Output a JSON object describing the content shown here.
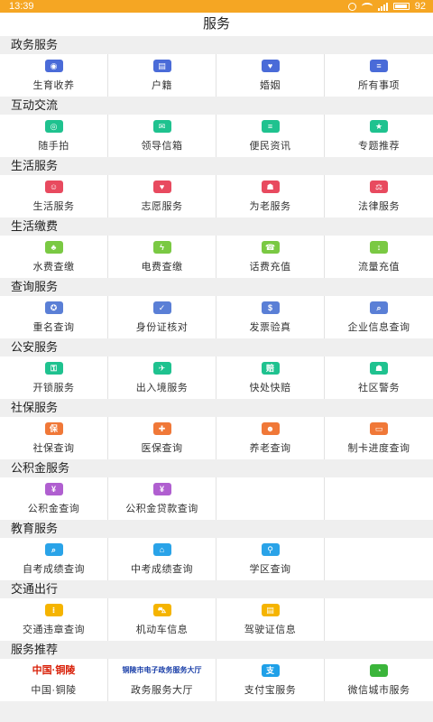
{
  "statusbar": {
    "time": "13:39",
    "battery": "92"
  },
  "header": {
    "title": "服务"
  },
  "sections": [
    {
      "title": "政务服务",
      "items": [
        {
          "label": "生育收养",
          "icon": "family-icon",
          "glyph": "◉",
          "color": "#4a6bd8"
        },
        {
          "label": "户籍",
          "icon": "id-card-icon",
          "glyph": "▤",
          "color": "#4a6bd8"
        },
        {
          "label": "婚姻",
          "icon": "couple-icon",
          "glyph": "♥",
          "color": "#4a6bd8"
        },
        {
          "label": "所有事项",
          "icon": "document-icon",
          "glyph": "≡",
          "color": "#4a6bd8"
        }
      ]
    },
    {
      "title": "互动交流",
      "items": [
        {
          "label": "随手拍",
          "icon": "camera-icon",
          "glyph": "◎",
          "color": "#1fc28f"
        },
        {
          "label": "领导信箱",
          "icon": "mail-icon",
          "glyph": "✉",
          "color": "#1fc28f"
        },
        {
          "label": "便民资讯",
          "icon": "news-icon",
          "glyph": "≡",
          "color": "#1fc28f"
        },
        {
          "label": "专题推荐",
          "icon": "star-icon",
          "glyph": "★",
          "color": "#1fc28f"
        }
      ]
    },
    {
      "title": "生活服务",
      "items": [
        {
          "label": "生活服务",
          "icon": "person-icon",
          "glyph": "☺",
          "color": "#e84a5f"
        },
        {
          "label": "志愿服务",
          "icon": "heart-hand-icon",
          "glyph": "♥",
          "color": "#e84a5f"
        },
        {
          "label": "为老服务",
          "icon": "elderly-icon",
          "glyph": "☗",
          "color": "#e84a5f"
        },
        {
          "label": "法律服务",
          "icon": "gavel-icon",
          "glyph": "⚖",
          "color": "#e84a5f"
        }
      ]
    },
    {
      "title": "生活缴费",
      "items": [
        {
          "label": "水费查缴",
          "icon": "water-drop-icon",
          "glyph": "♣",
          "color": "#7ac943"
        },
        {
          "label": "电费查缴",
          "icon": "lightning-icon",
          "glyph": "ϟ",
          "color": "#7ac943"
        },
        {
          "label": "话费充值",
          "icon": "phone-icon",
          "glyph": "☎",
          "color": "#7ac943"
        },
        {
          "label": "流量充值",
          "icon": "data-icon",
          "glyph": "↕",
          "color": "#7ac943"
        }
      ]
    },
    {
      "title": "查询服务",
      "items": [
        {
          "label": "重名查询",
          "icon": "search-person-icon",
          "glyph": "✪",
          "color": "#5a7fd6"
        },
        {
          "label": "身份证核对",
          "icon": "id-check-icon",
          "glyph": "✓",
          "color": "#5a7fd6"
        },
        {
          "label": "发票验真",
          "icon": "invoice-icon",
          "glyph": "$",
          "color": "#5a7fd6"
        },
        {
          "label": "企业信息查询",
          "icon": "company-search-icon",
          "glyph": "⌕",
          "color": "#5a7fd6"
        }
      ]
    },
    {
      "title": "公安服务",
      "items": [
        {
          "label": "开锁服务",
          "icon": "lock-icon",
          "glyph": "⚿",
          "color": "#1fc28f"
        },
        {
          "label": "出入境服务",
          "icon": "airplane-icon",
          "glyph": "✈",
          "color": "#1fc28f"
        },
        {
          "label": "快处快赔",
          "icon": "shield-icon",
          "glyph": "赔",
          "color": "#1fc28f"
        },
        {
          "label": "社区警务",
          "icon": "police-icon",
          "glyph": "☗",
          "color": "#1fc28f"
        }
      ]
    },
    {
      "title": "社保服务",
      "items": [
        {
          "label": "社保查询",
          "icon": "insurance-icon",
          "glyph": "保",
          "color": "#f07838"
        },
        {
          "label": "医保查询",
          "icon": "medical-icon",
          "glyph": "✚",
          "color": "#f07838"
        },
        {
          "label": "养老查询",
          "icon": "elderly-couple-icon",
          "glyph": "☻",
          "color": "#f07838"
        },
        {
          "label": "制卡进度查询",
          "icon": "card-icon",
          "glyph": "▭",
          "color": "#f07838"
        }
      ]
    },
    {
      "title": "公积金服务",
      "items": [
        {
          "label": "公积金查询",
          "icon": "money-bag-icon",
          "glyph": "¥",
          "color": "#b05fd0"
        },
        {
          "label": "公积金贷款查询",
          "icon": "loan-icon",
          "glyph": "¥",
          "color": "#b05fd0"
        },
        null,
        null
      ]
    },
    {
      "title": "教育服务",
      "items": [
        {
          "label": "自考成绩查询",
          "icon": "search-icon",
          "glyph": "⌕",
          "color": "#2aa3e8"
        },
        {
          "label": "中考成绩查询",
          "icon": "graduation-cap-icon",
          "glyph": "⌂",
          "color": "#2aa3e8"
        },
        {
          "label": "学区查询",
          "icon": "location-icon",
          "glyph": "⚲",
          "color": "#2aa3e8"
        },
        null
      ]
    },
    {
      "title": "交通出行",
      "items": [
        {
          "label": "交通违章查询",
          "icon": "traffic-light-icon",
          "glyph": "⁝",
          "color": "#f5b400"
        },
        {
          "label": "机动车信息",
          "icon": "car-icon",
          "glyph": "⛍",
          "color": "#f5b400"
        },
        {
          "label": "驾驶证信息",
          "icon": "license-icon",
          "glyph": "▤",
          "color": "#f5b400"
        },
        null
      ]
    },
    {
      "title": "服务推荐",
      "items": [
        {
          "label": "中国·铜陵",
          "icon": "tongling-logo",
          "logo_text": "中国·铜陵",
          "color": "#d81e06"
        },
        {
          "label": "政务服务大厅",
          "icon": "gov-hall-logo",
          "logo_text": "铜陵市电子政务服务大厅",
          "color": "#1a3fa8"
        },
        {
          "label": "支付宝服务",
          "icon": "alipay-icon",
          "glyph": "支",
          "color": "#1fa0e8"
        },
        {
          "label": "微信城市服务",
          "icon": "wechat-icon",
          "glyph": "◔",
          "color": "#3bb53b"
        }
      ]
    }
  ]
}
